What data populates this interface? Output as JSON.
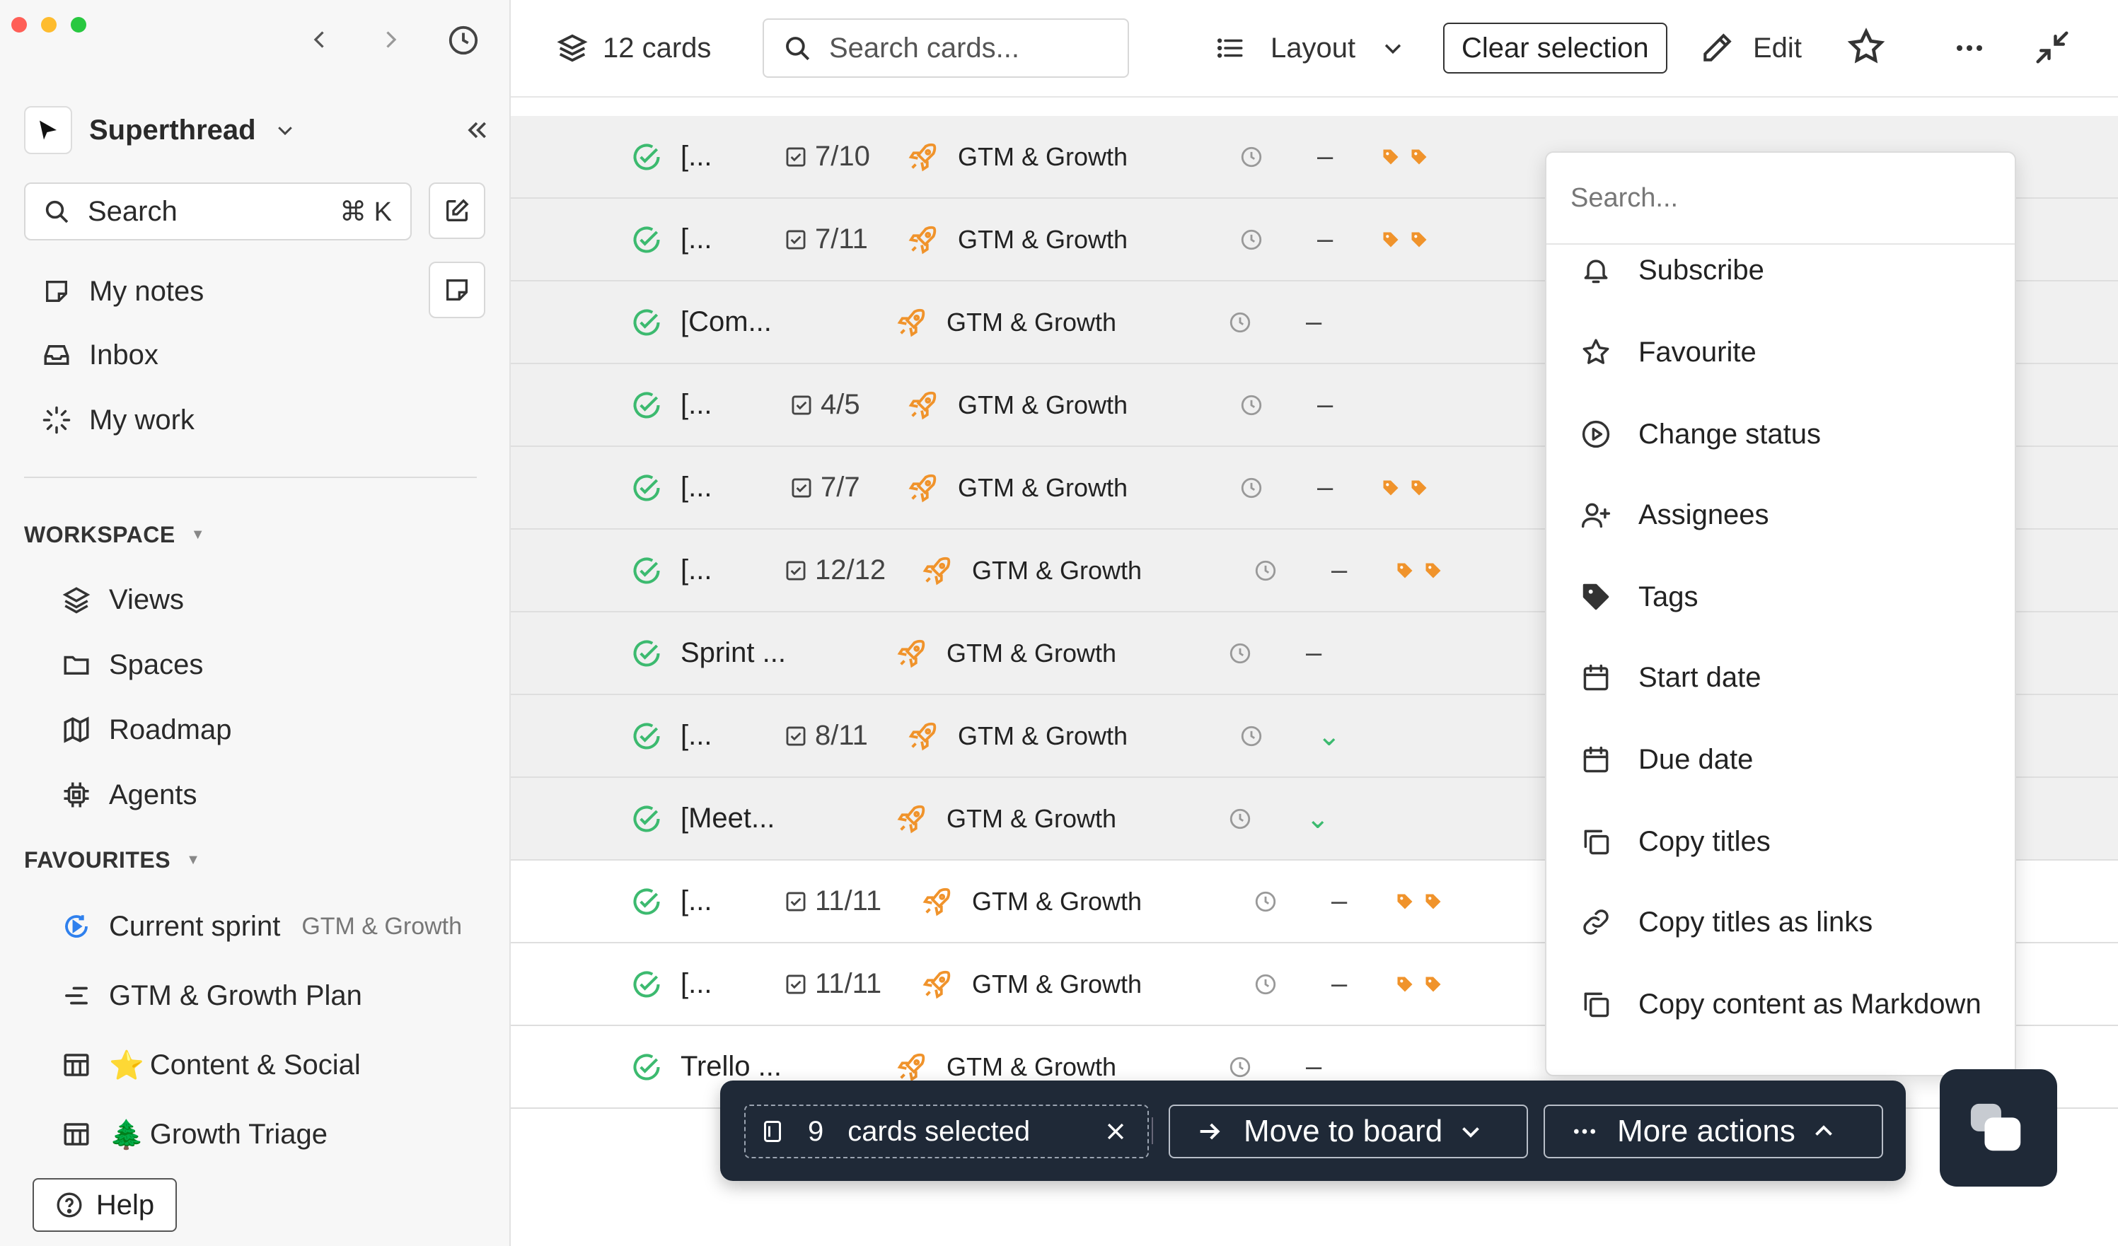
{
  "sidebar": {
    "workspace_name": "Superthread",
    "search_label": "Search",
    "search_shortcut": "⌘ K",
    "nav": [
      {
        "label": "My notes",
        "icon": "note-icon"
      },
      {
        "label": "Inbox",
        "icon": "inbox-icon"
      },
      {
        "label": "My work",
        "icon": "loader-icon"
      }
    ],
    "workspace_label": "WORKSPACE",
    "workspace_items": [
      {
        "label": "Views",
        "icon": "layers-icon"
      },
      {
        "label": "Spaces",
        "icon": "folder-icon"
      },
      {
        "label": "Roadmap",
        "icon": "map-icon"
      },
      {
        "label": "Agents",
        "icon": "chip-icon"
      }
    ],
    "favourites_label": "FAVOURITES",
    "favourites": [
      {
        "label": "Current sprint",
        "sub": "GTM & Growth",
        "icon": "sprint-icon",
        "emoji": ""
      },
      {
        "label": "GTM & Growth Plan",
        "sub": "",
        "icon": "roadmap-lines-icon",
        "emoji": ""
      },
      {
        "label": "Content & Social",
        "sub": "",
        "icon": "table-icon",
        "emoji": "⭐"
      },
      {
        "label": "Growth Triage",
        "sub": "",
        "icon": "table-icon",
        "emoji": "🌲"
      }
    ],
    "help_label": "Help"
  },
  "toolbar": {
    "cards_count": "12 cards",
    "search_placeholder": "Search cards...",
    "layout_label": "Layout",
    "clear_label": "Clear selection",
    "edit_label": "Edit"
  },
  "rows": [
    {
      "title": "[...",
      "progress": "7/10",
      "board": "GTM & Growth",
      "due": "–",
      "tags": 2,
      "selected": true
    },
    {
      "title": "[...",
      "progress": "7/11",
      "board": "GTM & Growth",
      "due": "–",
      "tags": 2,
      "selected": true
    },
    {
      "title": "[Com...",
      "progress": "",
      "board": "GTM & Growth",
      "due": "–",
      "tags": 0,
      "selected": true
    },
    {
      "title": "[...",
      "progress": "4/5",
      "board": "GTM & Growth",
      "due": "–",
      "tags": 0,
      "selected": true
    },
    {
      "title": "[...",
      "progress": "7/7",
      "board": "GTM & Growth",
      "due": "–",
      "tags": 2,
      "selected": true
    },
    {
      "title": "[...",
      "progress": "12/12",
      "board": "GTM & Growth",
      "due": "–",
      "tags": 2,
      "selected": true
    },
    {
      "title": "Sprint ...",
      "progress": "",
      "board": "GTM & Growth",
      "due": "–",
      "tags": 0,
      "selected": true
    },
    {
      "title": "[...",
      "progress": "8/11",
      "board": "GTM & Growth",
      "due": "⌄",
      "tags": 0,
      "selected": true
    },
    {
      "title": "[Meet...",
      "progress": "",
      "board": "GTM & Growth",
      "due": "⌄",
      "tags": 0,
      "selected": true
    },
    {
      "title": "[...",
      "progress": "11/11",
      "board": "GTM & Growth",
      "due": "–",
      "tags": 2,
      "selected": false
    },
    {
      "title": "[...",
      "progress": "11/11",
      "board": "GTM & Growth",
      "due": "–",
      "tags": 2,
      "selected": false
    },
    {
      "title": "Trello ...",
      "progress": "",
      "board": "GTM & Growth",
      "due": "–",
      "tags": 0,
      "selected": false
    }
  ],
  "menu": {
    "search_placeholder": "Search...",
    "items": [
      {
        "label": "Subscribe",
        "icon": "bell-icon"
      },
      {
        "label": "Favourite",
        "icon": "star-icon"
      },
      {
        "label": "Change status",
        "icon": "play-circle-icon"
      },
      {
        "label": "Assignees",
        "icon": "user-plus-icon"
      },
      {
        "label": "Tags",
        "icon": "tag-icon"
      },
      {
        "label": "Start date",
        "icon": "calendar-icon"
      },
      {
        "label": "Due date",
        "icon": "calendar-icon"
      },
      {
        "label": "Copy titles",
        "icon": "copy-icon"
      },
      {
        "label": "Copy titles as links",
        "icon": "link-icon"
      },
      {
        "label": "Copy content as Markdown",
        "icon": "copy-icon"
      }
    ]
  },
  "actionbar": {
    "selected_count": "9",
    "selected_label": "cards selected",
    "move_label": "Move to board",
    "more_label": "More actions"
  },
  "colors": {
    "accent_orange": "#f0932b",
    "success_green": "#3cba6f",
    "dark_bar": "#1f2937"
  }
}
